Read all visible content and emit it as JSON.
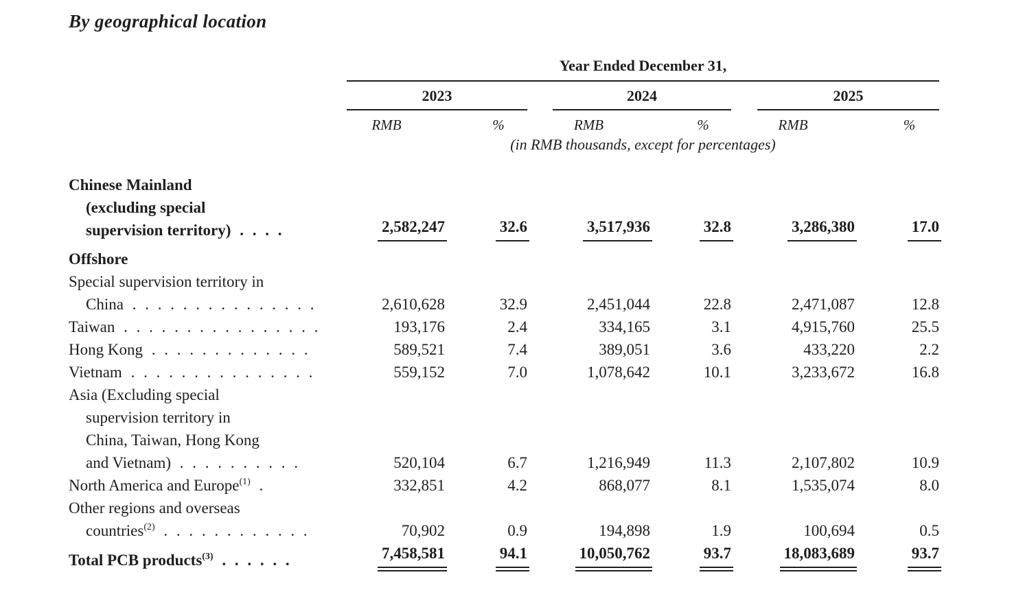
{
  "title": "By geographical location",
  "table": {
    "span_header": "Year Ended December 31,",
    "years": [
      "2023",
      "2024",
      "2025"
    ],
    "col_headers": {
      "rmb": "RMB",
      "pct": "%"
    },
    "note": "(in RMB thousands, except for percentages)",
    "rows": [
      {
        "id": "chinese-mainland",
        "bold": true,
        "underline": "single",
        "label_lines": [
          {
            "text": "Chinese Mainland",
            "indent": false
          },
          {
            "text": "(excluding special",
            "indent": true
          },
          {
            "text": "supervision territory)",
            "indent": true,
            "dots": ". . . ."
          }
        ],
        "values": [
          "2,582,247",
          "32.6",
          "3,517,936",
          "32.8",
          "3,286,380",
          "17.0"
        ]
      },
      {
        "id": "offshore",
        "bold": true,
        "underline": null,
        "label_lines": [
          {
            "text": "Offshore",
            "indent": false
          }
        ],
        "values": null
      },
      {
        "id": "special-supervision-territory-china",
        "bold": false,
        "underline": null,
        "label_lines": [
          {
            "text": "Special supervision territory in",
            "indent": false
          },
          {
            "text": "China",
            "indent": true,
            "dots": ". . . . . . . . . . . . . . ."
          }
        ],
        "values": [
          "2,610,628",
          "32.9",
          "2,451,044",
          "22.8",
          "2,471,087",
          "12.8"
        ]
      },
      {
        "id": "taiwan",
        "bold": false,
        "underline": null,
        "label_lines": [
          {
            "text": "Taiwan",
            "indent": false,
            "dots": ". . . . . . . . . . . . . . . ."
          }
        ],
        "values": [
          "193,176",
          "2.4",
          "334,165",
          "3.1",
          "4,915,760",
          "25.5"
        ]
      },
      {
        "id": "hong-kong",
        "bold": false,
        "underline": null,
        "label_lines": [
          {
            "text": "Hong Kong",
            "indent": false,
            "dots": ". . . . . . . . . . . . ."
          }
        ],
        "values": [
          "589,521",
          "7.4",
          "389,051",
          "3.6",
          "433,220",
          "2.2"
        ]
      },
      {
        "id": "vietnam",
        "bold": false,
        "underline": null,
        "label_lines": [
          {
            "text": "Vietnam",
            "indent": false,
            "dots": ". . . . . . . . . . . . . . ."
          }
        ],
        "values": [
          "559,152",
          "7.0",
          "1,078,642",
          "10.1",
          "3,233,672",
          "16.8"
        ]
      },
      {
        "id": "asia-excluding",
        "bold": false,
        "underline": null,
        "label_lines": [
          {
            "text": "Asia (Excluding special",
            "indent": false
          },
          {
            "text": "supervision territory in",
            "indent": true
          },
          {
            "text": "China, Taiwan, Hong Kong",
            "indent": true
          },
          {
            "text": "and Vietnam)",
            "indent": true,
            "dots": ". . . . . . . . . ."
          }
        ],
        "values": [
          "520,104",
          "6.7",
          "1,216,949",
          "11.3",
          "2,107,802",
          "10.9"
        ]
      },
      {
        "id": "north-america-and-europe",
        "bold": false,
        "underline": null,
        "label_lines": [
          {
            "text": "North America and Europe",
            "indent": false,
            "sup": "(1)",
            "dots": "."
          }
        ],
        "values": [
          "332,851",
          "4.2",
          "868,077",
          "8.1",
          "1,535,074",
          "8.0"
        ]
      },
      {
        "id": "other-regions",
        "bold": false,
        "underline": null,
        "label_lines": [
          {
            "text": "Other regions and overseas",
            "indent": false
          },
          {
            "text": "countries",
            "indent": true,
            "sup": "(2)",
            "dots": ". . . . . . . . . . . ."
          }
        ],
        "values": [
          "70,902",
          "0.9",
          "194,898",
          "1.9",
          "100,694",
          "0.5"
        ]
      },
      {
        "id": "total-pcb-products",
        "bold": true,
        "underline": "double",
        "label_lines": [
          {
            "text": "Total PCB products",
            "indent": false,
            "sup": "(3)",
            "dots": ". . . . . ."
          }
        ],
        "values": [
          "7,458,581",
          "94.1",
          "10,050,762",
          "93.7",
          "18,083,689",
          "93.7"
        ]
      }
    ]
  }
}
